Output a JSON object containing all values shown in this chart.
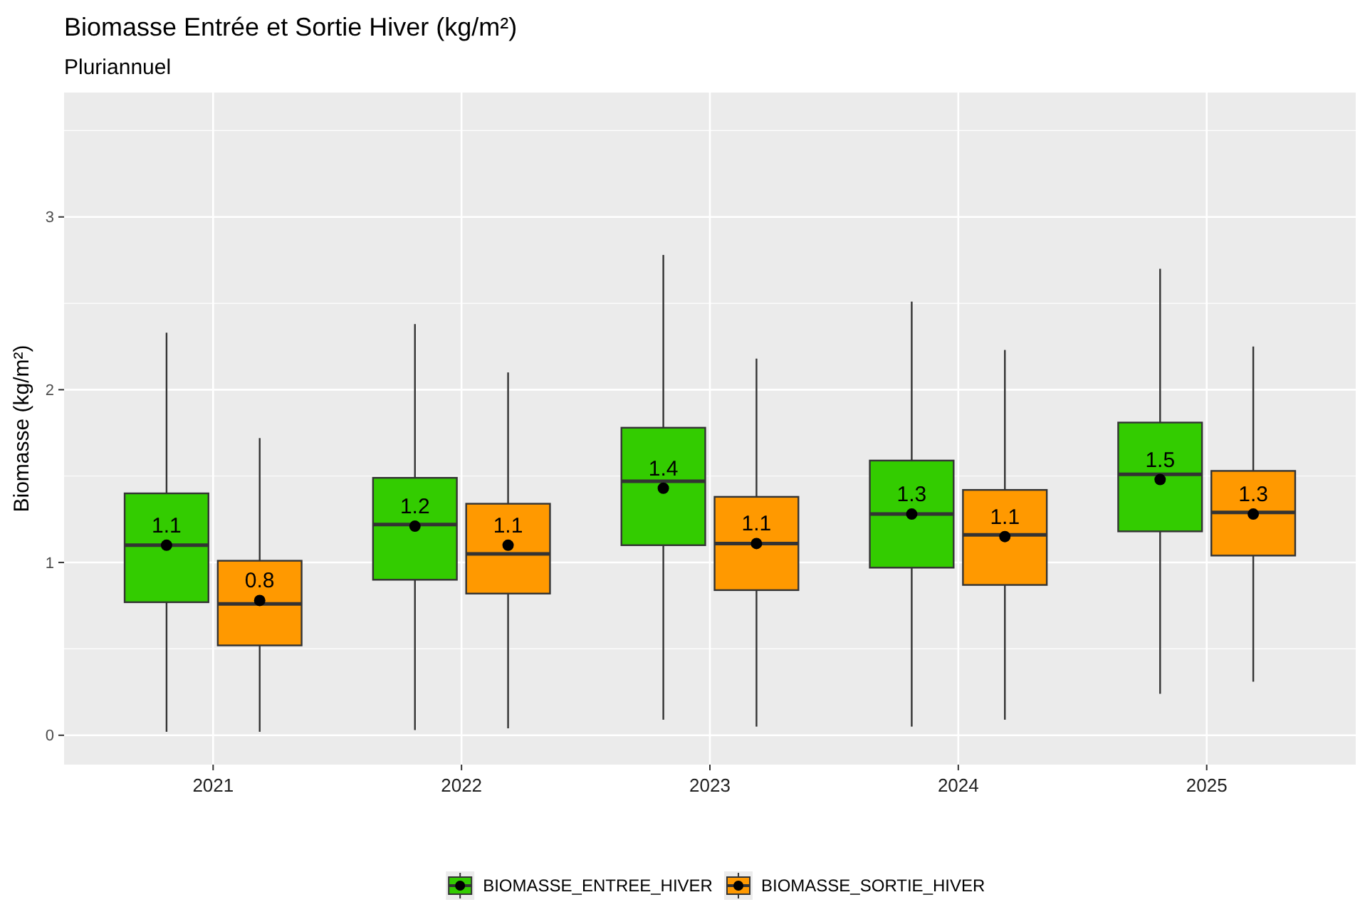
{
  "chart_data": {
    "type": "box",
    "title": "Biomasse Entrée et Sortie Hiver (kg/m²)",
    "subtitle": "Pluriannuel",
    "ylabel": "Biomasse (kg/m²)",
    "categories": [
      "2021",
      "2022",
      "2023",
      "2024",
      "2025"
    ],
    "ylim": [
      -0.17,
      3.72
    ],
    "yticks": [
      0,
      1,
      2,
      3
    ],
    "grid": true,
    "legend": "bottom",
    "marker": "circle",
    "series": [
      {
        "name": "BIOMASSE_ENTREE_HIVER",
        "color": "#33cc00",
        "value_labels": [
          "1.1",
          "1.2",
          "1.4",
          "1.3",
          "1.5"
        ],
        "boxes": [
          {
            "low": 0.02,
            "q1": 0.77,
            "median": 1.1,
            "q3": 1.4,
            "high": 2.33,
            "mean": 1.1
          },
          {
            "low": 0.03,
            "q1": 0.9,
            "median": 1.22,
            "q3": 1.49,
            "high": 2.38,
            "mean": 1.21
          },
          {
            "low": 0.09,
            "q1": 1.1,
            "median": 1.47,
            "q3": 1.78,
            "high": 2.78,
            "mean": 1.43
          },
          {
            "low": 0.05,
            "q1": 0.97,
            "median": 1.28,
            "q3": 1.59,
            "high": 2.51,
            "mean": 1.28
          },
          {
            "low": 0.24,
            "q1": 1.18,
            "median": 1.51,
            "q3": 1.81,
            "high": 2.7,
            "mean": 1.48
          }
        ]
      },
      {
        "name": "BIOMASSE_SORTIE_HIVER",
        "color": "#ff9900",
        "value_labels": [
          "0.8",
          "1.1",
          "1.1",
          "1.1",
          "1.3"
        ],
        "boxes": [
          {
            "low": 0.02,
            "q1": 0.52,
            "median": 0.76,
            "q3": 1.01,
            "high": 1.72,
            "mean": 0.78
          },
          {
            "low": 0.04,
            "q1": 0.82,
            "median": 1.05,
            "q3": 1.34,
            "high": 2.1,
            "mean": 1.1
          },
          {
            "low": 0.05,
            "q1": 0.84,
            "median": 1.11,
            "q3": 1.38,
            "high": 2.18,
            "mean": 1.11
          },
          {
            "low": 0.09,
            "q1": 0.87,
            "median": 1.16,
            "q3": 1.42,
            "high": 2.23,
            "mean": 1.15
          },
          {
            "low": 0.31,
            "q1": 1.04,
            "median": 1.29,
            "q3": 1.53,
            "high": 2.25,
            "mean": 1.28
          }
        ]
      }
    ]
  }
}
